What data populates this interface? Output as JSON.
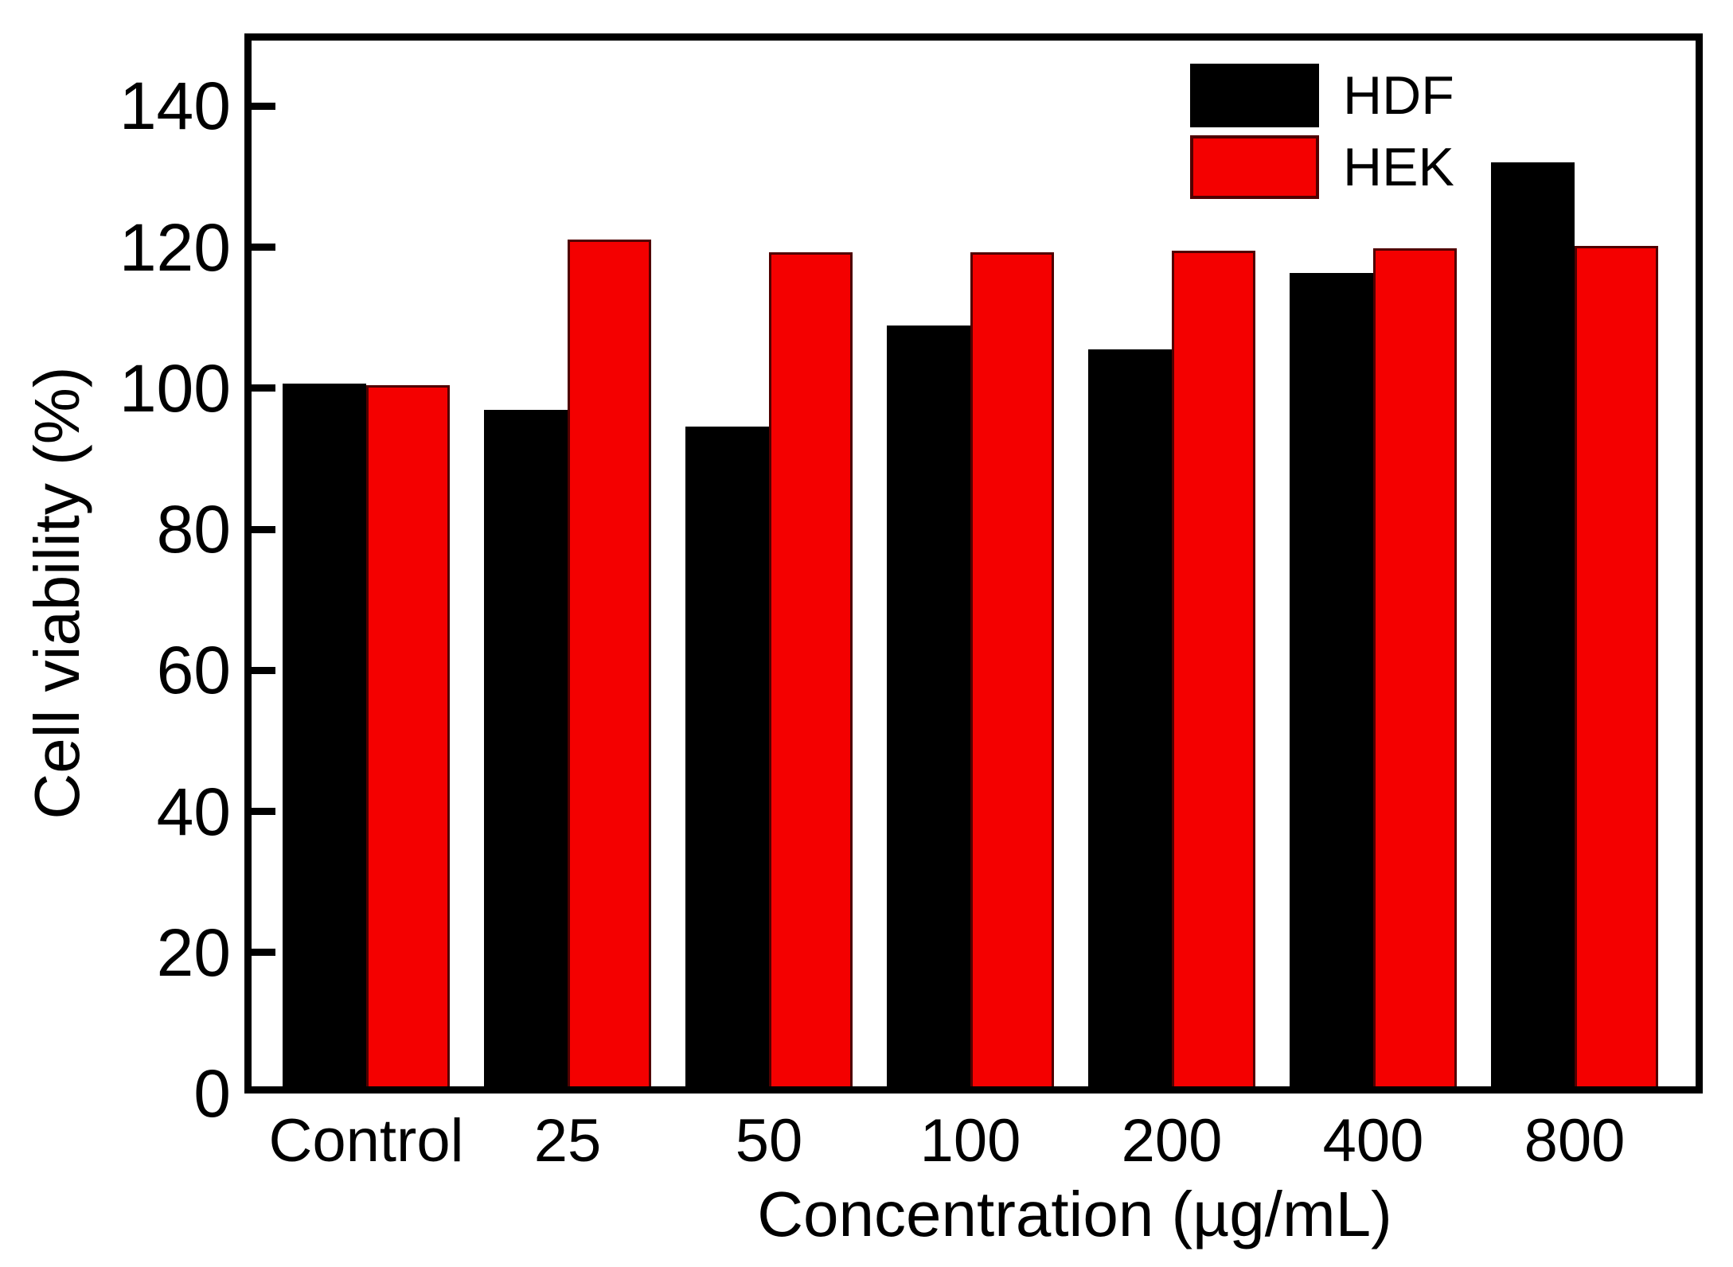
{
  "chart_data": {
    "type": "bar",
    "title": "",
    "xlabel": "Concentration (µg/mL)",
    "ylabel": "Cell viability (%)",
    "categories": [
      "Control",
      "25",
      "50",
      "100",
      "200",
      "400",
      "800"
    ],
    "series": [
      {
        "name": "HDF",
        "color": "#000000",
        "edge_color": "#000000",
        "values": [
          100.0,
          96.3,
          93.9,
          108.2,
          104.8,
          115.7,
          131.4
        ]
      },
      {
        "name": "HEK",
        "color": "#f40000",
        "edge_color": "#500000",
        "values": [
          99.8,
          120.4,
          118.6,
          118.6,
          118.8,
          119.2,
          119.5
        ]
      }
    ],
    "ylim": [
      0,
      150.3
    ],
    "yticks": [
      0,
      20,
      40,
      60,
      80,
      100,
      120,
      140
    ],
    "grid": false,
    "legend_position": "top-right",
    "frame_color": "#000000",
    "background_color": "#ffffff"
  }
}
